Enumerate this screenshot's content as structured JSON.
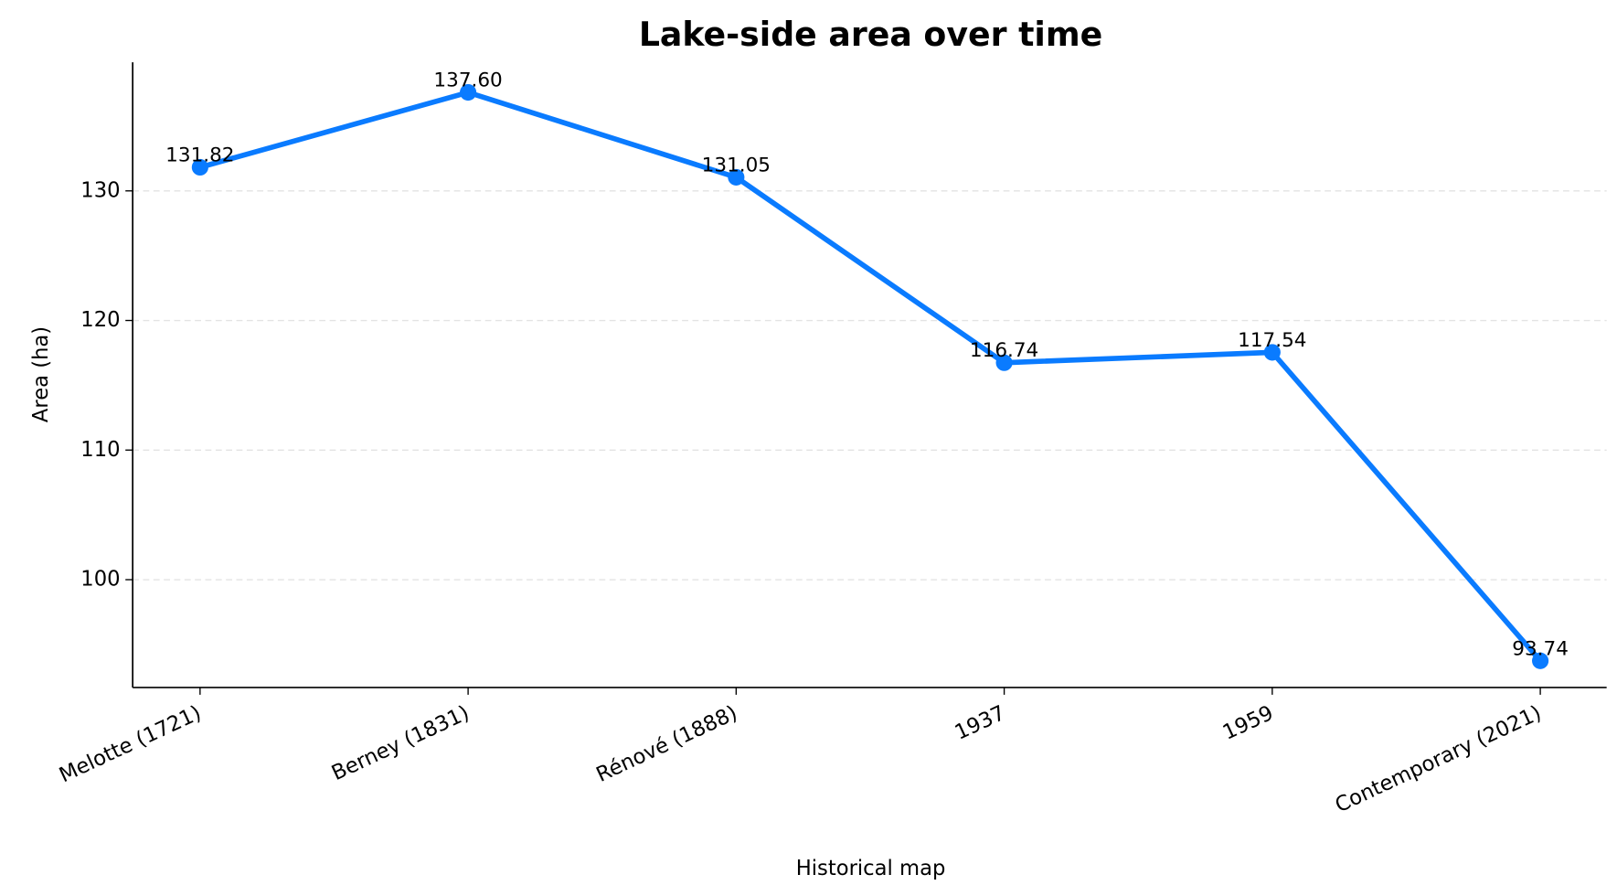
{
  "chart_data": {
    "type": "line",
    "title": "Lake-side area over time",
    "xlabel": "Historical map",
    "ylabel": "Area (ha)",
    "categories": [
      "Melotte (1721)",
      "Berney (1831)",
      "Rénové (1888)",
      "1937",
      "1959",
      "Contemporary (2021)"
    ],
    "series": [
      {
        "name": "Area",
        "color": "#0a7bff",
        "values": [
          131.82,
          137.6,
          131.05,
          116.74,
          117.54,
          93.74
        ],
        "value_labels": [
          "131.82",
          "137.60",
          "131.05",
          "116.74",
          "117.54",
          "93.74"
        ]
      }
    ],
    "ylim": [
      91.68,
      139.92
    ],
    "yticks": [
      100,
      110,
      120,
      130
    ],
    "grid": true
  }
}
